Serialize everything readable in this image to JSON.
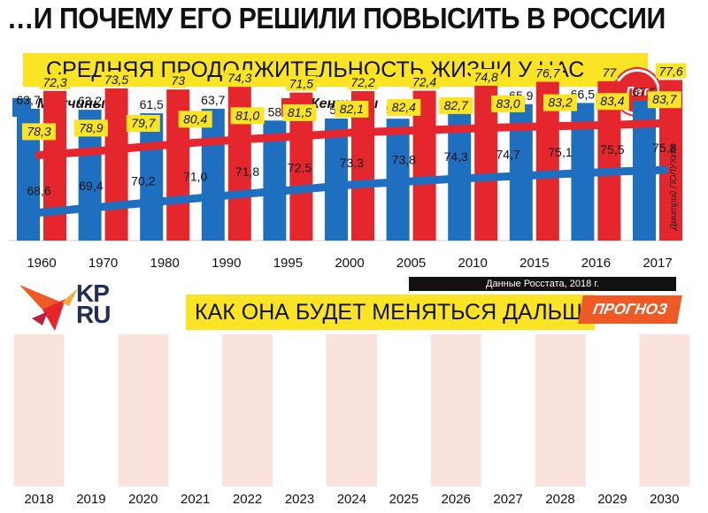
{
  "title": "…И ПОЧЕМУ ЕГО РЕШИЛИ ПОВЫСИТЬ В РОССИИ",
  "section1_title": "СРЕДНЯЯ ПРОДОЛЖИТЕЛЬНОСТЬ ЖИЗНИ У НАС",
  "section2_title": "КАК ОНА БУДЕТ МЕНЯТЬСЯ ДАЛЬШЕ",
  "forecast_label": "ПРОГНОЗ",
  "badge": "Лет",
  "credit": "Дмитрий ПОЛУХИН",
  "source": "Данные Росстата, 2018 г.",
  "logo": {
    "line1": "KP",
    "line2": "RU"
  },
  "colors": {
    "men": "#1f6fc1",
    "women": "#e5262c",
    "band": "#fbe424",
    "label_bg": "#fbe424",
    "stripe": "#f9e3dc",
    "forecast": "#ee5a26"
  },
  "chart_data": [
    {
      "type": "bar",
      "categories": [
        "1960",
        "1970",
        "1980",
        "1990",
        "1995",
        "2000",
        "2005",
        "2010",
        "2015",
        "2016",
        "2017"
      ],
      "series": [
        {
          "name": "Мужчины",
          "values": [
            63.7,
            63.2,
            61.5,
            63.7,
            58,
            59,
            58.9,
            63,
            65.9,
            66.5,
            67.5
          ],
          "labels": [
            "63,7",
            "63,2",
            "61,5",
            "63,7",
            "58",
            "59",
            "58,9",
            "63",
            "65,9",
            "66,5",
            "67,5"
          ]
        },
        {
          "name": "Женщины",
          "values": [
            72.3,
            73.5,
            73,
            74.3,
            71.5,
            72.2,
            72.4,
            74.8,
            76.7,
            77,
            77.6
          ],
          "labels": [
            "72,3",
            "73,5",
            "73",
            "74,3",
            "71,5",
            "72,2",
            "72,4",
            "74,8",
            "76,7",
            "77",
            "77,6"
          ]
        }
      ]
    },
    {
      "type": "line",
      "x": [
        "2018",
        "2019",
        "2020",
        "2021",
        "2022",
        "2023",
        "2024",
        "2025",
        "2026",
        "2027",
        "2028",
        "2029",
        "2030"
      ],
      "series": [
        {
          "name": "Женщины",
          "values": [
            78.3,
            78.9,
            79.7,
            80.4,
            81.0,
            81.5,
            82.1,
            82.4,
            82.7,
            83.0,
            83.2,
            83.4,
            83.7
          ],
          "labels": [
            "78,3",
            "78,9",
            "79,7",
            "80,4",
            "81,0",
            "81,5",
            "82,1",
            "82,4",
            "82,7",
            "83,0",
            "83,2",
            "83,4",
            "83,7"
          ]
        },
        {
          "name": "Мужчины",
          "values": [
            68.6,
            69.4,
            70.2,
            71.0,
            71.8,
            72.5,
            73.3,
            73.8,
            74.3,
            74.7,
            75.1,
            75.5,
            75.8
          ],
          "labels": [
            "68,6",
            "69,4",
            "70,2",
            "71,0",
            "71,8",
            "72,5",
            "73,3",
            "73,8",
            "74,3",
            "74,7",
            "75,1",
            "75,5",
            "75,8"
          ]
        }
      ]
    }
  ]
}
